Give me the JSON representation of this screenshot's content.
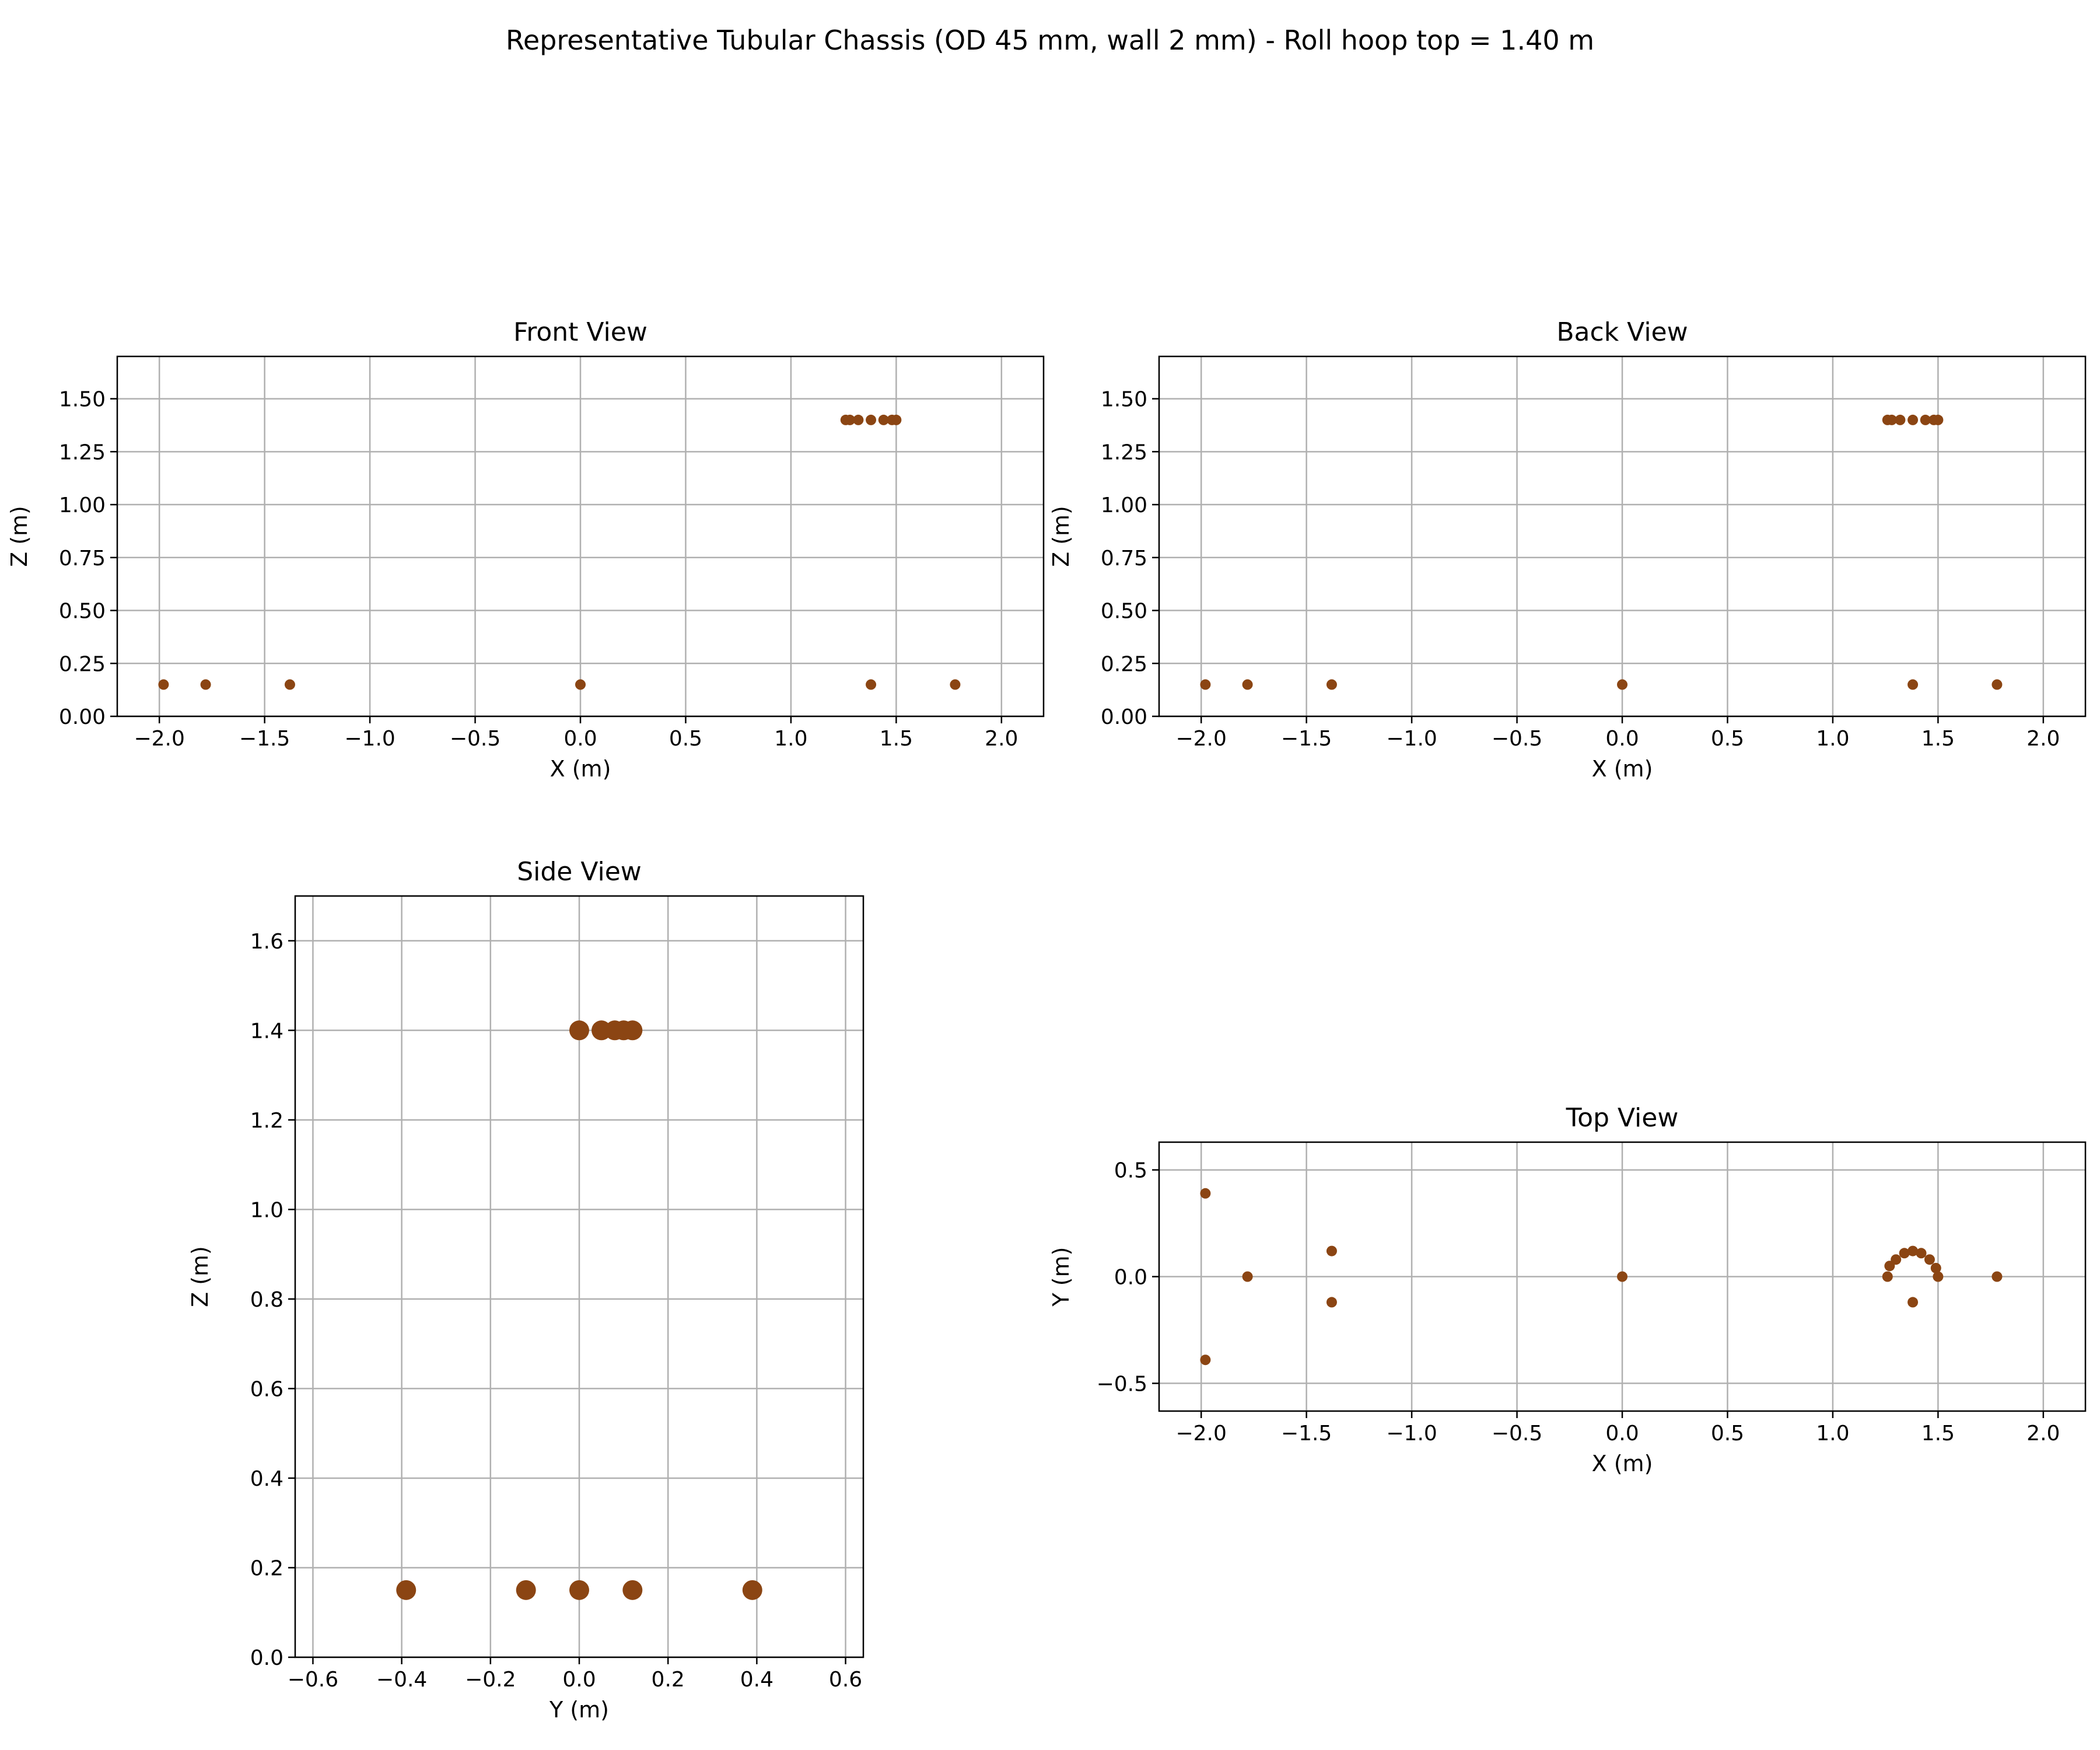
{
  "figure": {
    "title": "Representative Tubular Chassis (OD 45 mm, wall 2 mm) - Roll hoop top = 1.40 m"
  },
  "colors": {
    "marker": "#8B4513",
    "grid": "#b0b0b0",
    "axes": "#000000"
  },
  "chart_data": [
    {
      "id": "front",
      "type": "scatter",
      "title": "Front View",
      "xlabel": "X (m)",
      "ylabel": "Z (m)",
      "xlim": [
        -2.2,
        2.2
      ],
      "ylim": [
        0,
        1.7
      ],
      "xticks": [
        -2.0,
        -1.5,
        -1.0,
        -0.5,
        0.0,
        0.5,
        1.0,
        1.5,
        2.0
      ],
      "yticks": [
        0.0,
        0.25,
        0.5,
        0.75,
        1.0,
        1.25,
        1.5
      ],
      "xtick_labels": [
        "−2.0",
        "−1.5",
        "−1.0",
        "−0.5",
        "0.0",
        "0.5",
        "1.0",
        "1.5",
        "2.0"
      ],
      "ytick_labels": [
        "0.00",
        "0.25",
        "0.50",
        "0.75",
        "1.00",
        "1.25",
        "1.50"
      ],
      "grid": true,
      "marker_size": "small",
      "points": [
        [
          -1.98,
          0.15
        ],
        [
          -1.78,
          0.15
        ],
        [
          -1.38,
          0.15
        ],
        [
          0.0,
          0.15
        ],
        [
          1.38,
          0.15
        ],
        [
          1.78,
          0.15
        ],
        [
          1.26,
          1.4
        ],
        [
          1.28,
          1.4
        ],
        [
          1.32,
          1.4
        ],
        [
          1.38,
          1.4
        ],
        [
          1.44,
          1.4
        ],
        [
          1.48,
          1.4
        ],
        [
          1.5,
          1.4
        ]
      ]
    },
    {
      "id": "back",
      "type": "scatter",
      "title": "Back View",
      "xlabel": "X (m)",
      "ylabel": "Z (m)",
      "xlim": [
        -2.2,
        2.2
      ],
      "ylim": [
        0,
        1.7
      ],
      "xticks": [
        -2.0,
        -1.5,
        -1.0,
        -0.5,
        0.0,
        0.5,
        1.0,
        1.5,
        2.0
      ],
      "yticks": [
        0.0,
        0.25,
        0.5,
        0.75,
        1.0,
        1.25,
        1.5
      ],
      "xtick_labels": [
        "−2.0",
        "−1.5",
        "−1.0",
        "−0.5",
        "0.0",
        "0.5",
        "1.0",
        "1.5",
        "2.0"
      ],
      "ytick_labels": [
        "0.00",
        "0.25",
        "0.50",
        "0.75",
        "1.00",
        "1.25",
        "1.50"
      ],
      "grid": true,
      "marker_size": "small",
      "points": [
        [
          -1.98,
          0.15
        ],
        [
          -1.78,
          0.15
        ],
        [
          -1.38,
          0.15
        ],
        [
          0.0,
          0.15
        ],
        [
          1.38,
          0.15
        ],
        [
          1.78,
          0.15
        ],
        [
          1.26,
          1.4
        ],
        [
          1.28,
          1.4
        ],
        [
          1.32,
          1.4
        ],
        [
          1.38,
          1.4
        ],
        [
          1.44,
          1.4
        ],
        [
          1.48,
          1.4
        ],
        [
          1.5,
          1.4
        ]
      ]
    },
    {
      "id": "side",
      "type": "scatter",
      "title": "Side View",
      "xlabel": "Y (m)",
      "ylabel": "Z (m)",
      "xlim": [
        -0.64,
        0.64
      ],
      "ylim": [
        0,
        1.7
      ],
      "xticks": [
        -0.6,
        -0.4,
        -0.2,
        0.0,
        0.2,
        0.4,
        0.6
      ],
      "yticks": [
        0.0,
        0.2,
        0.4,
        0.6,
        0.8,
        1.0,
        1.2,
        1.4,
        1.6
      ],
      "xtick_labels": [
        "−0.6",
        "−0.4",
        "−0.2",
        "0.0",
        "0.2",
        "0.4",
        "0.6"
      ],
      "ytick_labels": [
        "0.0",
        "0.2",
        "0.4",
        "0.6",
        "0.8",
        "1.0",
        "1.2",
        "1.4",
        "1.6"
      ],
      "grid": true,
      "marker_size": "large",
      "points": [
        [
          -0.39,
          0.15
        ],
        [
          -0.12,
          0.15
        ],
        [
          0.0,
          0.15
        ],
        [
          0.12,
          0.15
        ],
        [
          0.39,
          0.15
        ],
        [
          0.0,
          1.4
        ],
        [
          0.05,
          1.4
        ],
        [
          0.08,
          1.4
        ],
        [
          0.1,
          1.4
        ],
        [
          0.12,
          1.4
        ]
      ]
    },
    {
      "id": "top",
      "type": "scatter",
      "title": "Top View",
      "xlabel": "X (m)",
      "ylabel": "Y (m)",
      "xlim": [
        -2.2,
        2.2
      ],
      "ylim": [
        -0.63,
        0.63
      ],
      "xticks": [
        -2.0,
        -1.5,
        -1.0,
        -0.5,
        0.0,
        0.5,
        1.0,
        1.5,
        2.0
      ],
      "yticks": [
        -0.5,
        0.0,
        0.5
      ],
      "xtick_labels": [
        "−2.0",
        "−1.5",
        "−1.0",
        "−0.5",
        "0.0",
        "0.5",
        "1.0",
        "1.5",
        "2.0"
      ],
      "ytick_labels": [
        "−0.5",
        "0.0",
        "0.5"
      ],
      "grid": true,
      "marker_size": "small",
      "points": [
        [
          -1.98,
          0.39
        ],
        [
          -1.98,
          -0.39
        ],
        [
          -1.78,
          0.0
        ],
        [
          -1.38,
          0.12
        ],
        [
          -1.38,
          -0.12
        ],
        [
          0.0,
          0.0
        ],
        [
          1.38,
          -0.12
        ],
        [
          1.78,
          0.0
        ],
        [
          1.26,
          0.0
        ],
        [
          1.27,
          0.05
        ],
        [
          1.3,
          0.08
        ],
        [
          1.34,
          0.11
        ],
        [
          1.38,
          0.12
        ],
        [
          1.42,
          0.11
        ],
        [
          1.46,
          0.08
        ],
        [
          1.49,
          0.04
        ],
        [
          1.5,
          0.0
        ]
      ]
    }
  ]
}
